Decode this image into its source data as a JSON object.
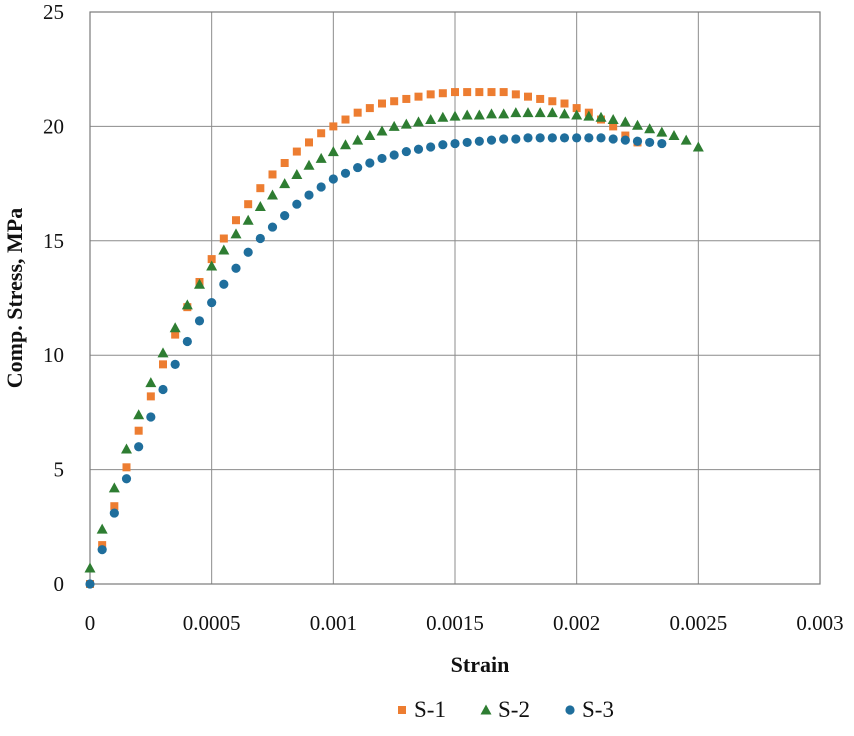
{
  "chart_data": {
    "type": "scatter",
    "title": "",
    "xlabel": "Strain",
    "ylabel": "Comp. Stress, MPa",
    "xlim": [
      0,
      0.003
    ],
    "ylim": [
      0,
      25
    ],
    "xticks": [
      0,
      0.0005,
      0.001,
      0.0015,
      0.002,
      0.0025,
      0.003
    ],
    "xtick_labels": [
      "0",
      "0.0005",
      "0.001",
      "0.0015",
      "0.002",
      "0.0025",
      "0.003"
    ],
    "yticks": [
      0,
      5,
      10,
      15,
      20,
      25
    ],
    "ytick_labels": [
      "0",
      "5",
      "10",
      "15",
      "20",
      "25"
    ],
    "grid": true,
    "legend_position": "bottom-center",
    "series": [
      {
        "name": "S-1",
        "marker": "square",
        "color": "#ED7D31",
        "x": [
          0,
          5e-05,
          0.0001,
          0.00015,
          0.0002,
          0.00025,
          0.0003,
          0.00035,
          0.0004,
          0.00045,
          0.0005,
          0.00055,
          0.0006,
          0.00065,
          0.0007,
          0.00075,
          0.0008,
          0.00085,
          0.0009,
          0.00095,
          0.001,
          0.00105,
          0.0011,
          0.00115,
          0.0012,
          0.00125,
          0.0013,
          0.00135,
          0.0014,
          0.00145,
          0.0015,
          0.00155,
          0.0016,
          0.00165,
          0.0017,
          0.00175,
          0.0018,
          0.00185,
          0.0019,
          0.00195,
          0.002,
          0.00205,
          0.0021,
          0.00215,
          0.0022,
          0.00225
        ],
        "y": [
          0.0,
          1.7,
          3.4,
          5.1,
          6.7,
          8.2,
          9.6,
          10.9,
          12.1,
          13.2,
          14.2,
          15.1,
          15.9,
          16.6,
          17.3,
          17.9,
          18.4,
          18.9,
          19.3,
          19.7,
          20.0,
          20.3,
          20.6,
          20.8,
          21.0,
          21.1,
          21.2,
          21.3,
          21.4,
          21.45,
          21.5,
          21.5,
          21.5,
          21.5,
          21.5,
          21.4,
          21.3,
          21.2,
          21.1,
          21.0,
          20.8,
          20.6,
          20.3,
          20.0,
          19.6,
          19.3
        ]
      },
      {
        "name": "S-2",
        "marker": "triangle",
        "color": "#2E7D32",
        "x": [
          0,
          5e-05,
          0.0001,
          0.00015,
          0.0002,
          0.00025,
          0.0003,
          0.00035,
          0.0004,
          0.00045,
          0.0005,
          0.00055,
          0.0006,
          0.00065,
          0.0007,
          0.00075,
          0.0008,
          0.00085,
          0.0009,
          0.00095,
          0.001,
          0.00105,
          0.0011,
          0.00115,
          0.0012,
          0.00125,
          0.0013,
          0.00135,
          0.0014,
          0.00145,
          0.0015,
          0.00155,
          0.0016,
          0.00165,
          0.0017,
          0.00175,
          0.0018,
          0.00185,
          0.0019,
          0.00195,
          0.002,
          0.00205,
          0.0021,
          0.00215,
          0.0022,
          0.00225,
          0.0023,
          0.00235,
          0.0024,
          0.00245,
          0.0025
        ],
        "y": [
          0.7,
          2.4,
          4.2,
          5.9,
          7.4,
          8.8,
          10.1,
          11.2,
          12.2,
          13.1,
          13.9,
          14.6,
          15.3,
          15.9,
          16.5,
          17.0,
          17.5,
          17.9,
          18.3,
          18.6,
          18.9,
          19.2,
          19.4,
          19.6,
          19.8,
          20.0,
          20.1,
          20.2,
          20.3,
          20.4,
          20.45,
          20.5,
          20.5,
          20.55,
          20.55,
          20.6,
          20.6,
          20.6,
          20.6,
          20.55,
          20.5,
          20.45,
          20.4,
          20.3,
          20.2,
          20.05,
          19.9,
          19.75,
          19.6,
          19.4,
          19.1
        ]
      },
      {
        "name": "S-3",
        "marker": "circle",
        "color": "#1F6E9C",
        "x": [
          0,
          5e-05,
          0.0001,
          0.00015,
          0.0002,
          0.00025,
          0.0003,
          0.00035,
          0.0004,
          0.00045,
          0.0005,
          0.00055,
          0.0006,
          0.00065,
          0.0007,
          0.00075,
          0.0008,
          0.00085,
          0.0009,
          0.00095,
          0.001,
          0.00105,
          0.0011,
          0.00115,
          0.0012,
          0.00125,
          0.0013,
          0.00135,
          0.0014,
          0.00145,
          0.0015,
          0.00155,
          0.0016,
          0.00165,
          0.0017,
          0.00175,
          0.0018,
          0.00185,
          0.0019,
          0.00195,
          0.002,
          0.00205,
          0.0021,
          0.00215,
          0.0022,
          0.00225,
          0.0023,
          0.00235
        ],
        "y": [
          0.0,
          1.5,
          3.1,
          4.6,
          6.0,
          7.3,
          8.5,
          9.6,
          10.6,
          11.5,
          12.3,
          13.1,
          13.8,
          14.5,
          15.1,
          15.6,
          16.1,
          16.6,
          17.0,
          17.35,
          17.7,
          17.95,
          18.2,
          18.4,
          18.6,
          18.75,
          18.9,
          19.0,
          19.1,
          19.2,
          19.25,
          19.3,
          19.35,
          19.4,
          19.45,
          19.45,
          19.5,
          19.5,
          19.5,
          19.5,
          19.5,
          19.5,
          19.5,
          19.45,
          19.4,
          19.35,
          19.3,
          19.25
        ]
      }
    ]
  }
}
